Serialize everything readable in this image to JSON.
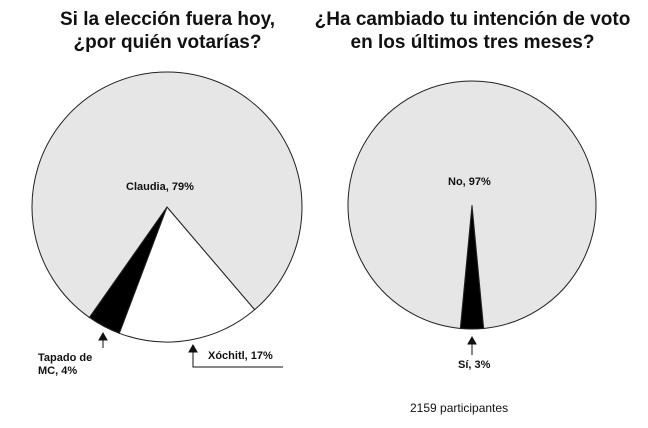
{
  "chart_data": [
    {
      "type": "pie",
      "title": "Si la elección fuera hoy, ¿por quién votarías?",
      "values": [
        17,
        4,
        79
      ],
      "value_labels": [
        "Xóchitl, 17%",
        "Tapado de MC, 4%",
        "Claudia, 79%"
      ],
      "colors": [
        "#ffffff",
        "#000000",
        "#e6e6e6"
      ]
    },
    {
      "type": "pie",
      "title": "¿Ha cambiado tu intención de voto en los últimos tres meses?",
      "values": [
        3,
        97
      ],
      "value_labels": [
        "Sí, 3%",
        "No, 97%"
      ],
      "colors": [
        "#000000",
        "#e6e6e6"
      ],
      "note": "2159 participantes"
    }
  ]
}
